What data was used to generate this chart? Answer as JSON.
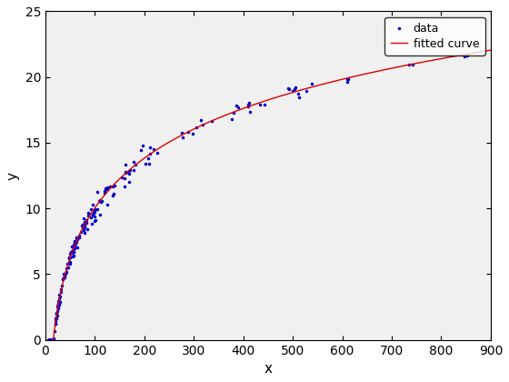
{
  "title": "",
  "xlabel": "x",
  "ylabel": "y",
  "xlim": [
    0,
    900
  ],
  "ylim": [
    0,
    25
  ],
  "xticks": [
    0,
    100,
    200,
    300,
    400,
    500,
    600,
    700,
    800,
    900
  ],
  "yticks": [
    0,
    5,
    10,
    15,
    20,
    25
  ],
  "data_color": "#0000cc",
  "curve_color": "#dd0000",
  "marker": ".",
  "marker_size": 3,
  "curve_a": 5.46,
  "curve_b": -15.1,
  "legend_data": "data",
  "legend_curve": "fitted curve",
  "bg_color": "#f0f0f0"
}
